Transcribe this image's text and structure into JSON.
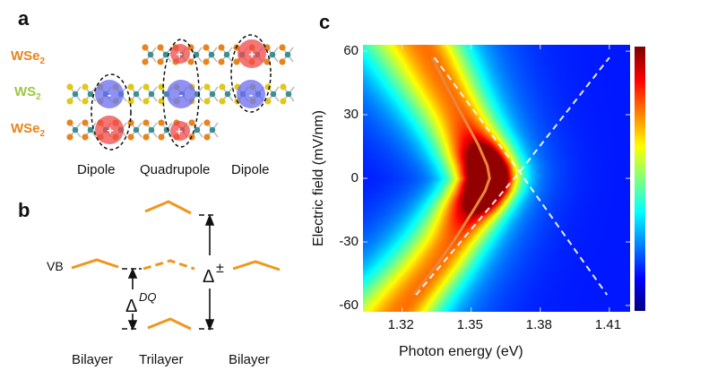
{
  "panel_a": {
    "label": "a",
    "layers": [
      {
        "name": "WSe",
        "sub": "2",
        "color": "#e8841e"
      },
      {
        "name": "WS",
        "sub": "2",
        "color": "#9bc83c"
      },
      {
        "name": "WSe",
        "sub": "2",
        "color": "#e8841e"
      }
    ],
    "charges": {
      "plus": "+",
      "minus": "-"
    },
    "captions": [
      "Dipole",
      "Quadrupole",
      "Dipole"
    ]
  },
  "panel_b": {
    "label": "b",
    "vb_label": "VB",
    "delta_dq": {
      "symbol": "Δ",
      "sup": "DQ"
    },
    "delta_pm": {
      "symbol": "Δ",
      "sup": "±"
    },
    "captions": [
      "Bilayer",
      "Trilayer",
      "Bilayer"
    ],
    "band_color": "#f0961e"
  },
  "chart_data": {
    "label": "c",
    "type": "heatmap",
    "xlabel": "Photon energy (eV)",
    "ylabel": "Electric field (mV/nm)",
    "xlim": [
      1.303,
      1.419
    ],
    "ylim": [
      -63,
      63
    ],
    "xticks": [
      "1.32",
      "1.35",
      "1.38",
      "1.41"
    ],
    "yticks": [
      "60",
      "30",
      "0",
      "-30",
      "-60"
    ],
    "colormap": "jet",
    "colorbar": true,
    "peak": {
      "x": 1.356,
      "y": 0
    },
    "fit_curve": {
      "color": "#e8883a",
      "points": [
        [
          1.333,
          57
        ],
        [
          1.34,
          42
        ],
        [
          1.347,
          28
        ],
        [
          1.353,
          16
        ],
        [
          1.357,
          6
        ],
        [
          1.358,
          0
        ],
        [
          1.356,
          -6
        ],
        [
          1.351,
          -15
        ],
        [
          1.344,
          -27
        ],
        [
          1.335,
          -41
        ],
        [
          1.325,
          -55
        ]
      ]
    },
    "dashed_lines": [
      {
        "color": "#ffffff",
        "points": [
          [
            1.334,
            57
          ],
          [
            1.371,
            3
          ],
          [
            1.409,
            -55
          ]
        ]
      },
      {
        "color": "#ffffff",
        "points": [
          [
            1.326,
            -55
          ],
          [
            1.371,
            3
          ],
          [
            1.41,
            57
          ]
        ]
      }
    ]
  }
}
